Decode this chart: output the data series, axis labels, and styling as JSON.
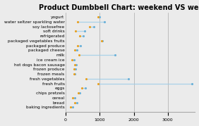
{
  "title": "Product Dumbbell Chart: weekend VS weekday",
  "categories": [
    "yogurt",
    "water seltzer sparkling water",
    "soy lactosefree",
    "soft drinks",
    "refrigerated",
    "packaged vegetables fruits",
    "packaged produce",
    "packaged cheese",
    "milk",
    "ice cream ice",
    "hot dogs bacon sausage",
    "frozen produce",
    "frozen meals",
    "fresh vegetables",
    "fresh fruits",
    "eggs",
    "chips pretzels",
    "cereal",
    "bread",
    "baking ingredients"
  ],
  "weekday": [
    950,
    350,
    700,
    300,
    420,
    1050,
    350,
    280,
    400,
    190,
    270,
    260,
    240,
    600,
    950,
    480,
    370,
    200,
    270,
    150
  ],
  "weekend": [
    1000,
    1150,
    820,
    550,
    510,
    1080,
    430,
    330,
    1450,
    240,
    310,
    290,
    270,
    1850,
    3700,
    580,
    420,
    270,
    340,
    210
  ],
  "weekday_color": "#e8a020",
  "weekend_color": "#6ab0d8",
  "line_color": "#9fcee8",
  "bg_color": "#ebebeb",
  "xlim": [
    0,
    3800
  ],
  "xticks": [
    0,
    1000,
    2000,
    3000
  ],
  "title_fontsize": 7,
  "label_fontsize": 4.2,
  "tick_fontsize": 4.5
}
